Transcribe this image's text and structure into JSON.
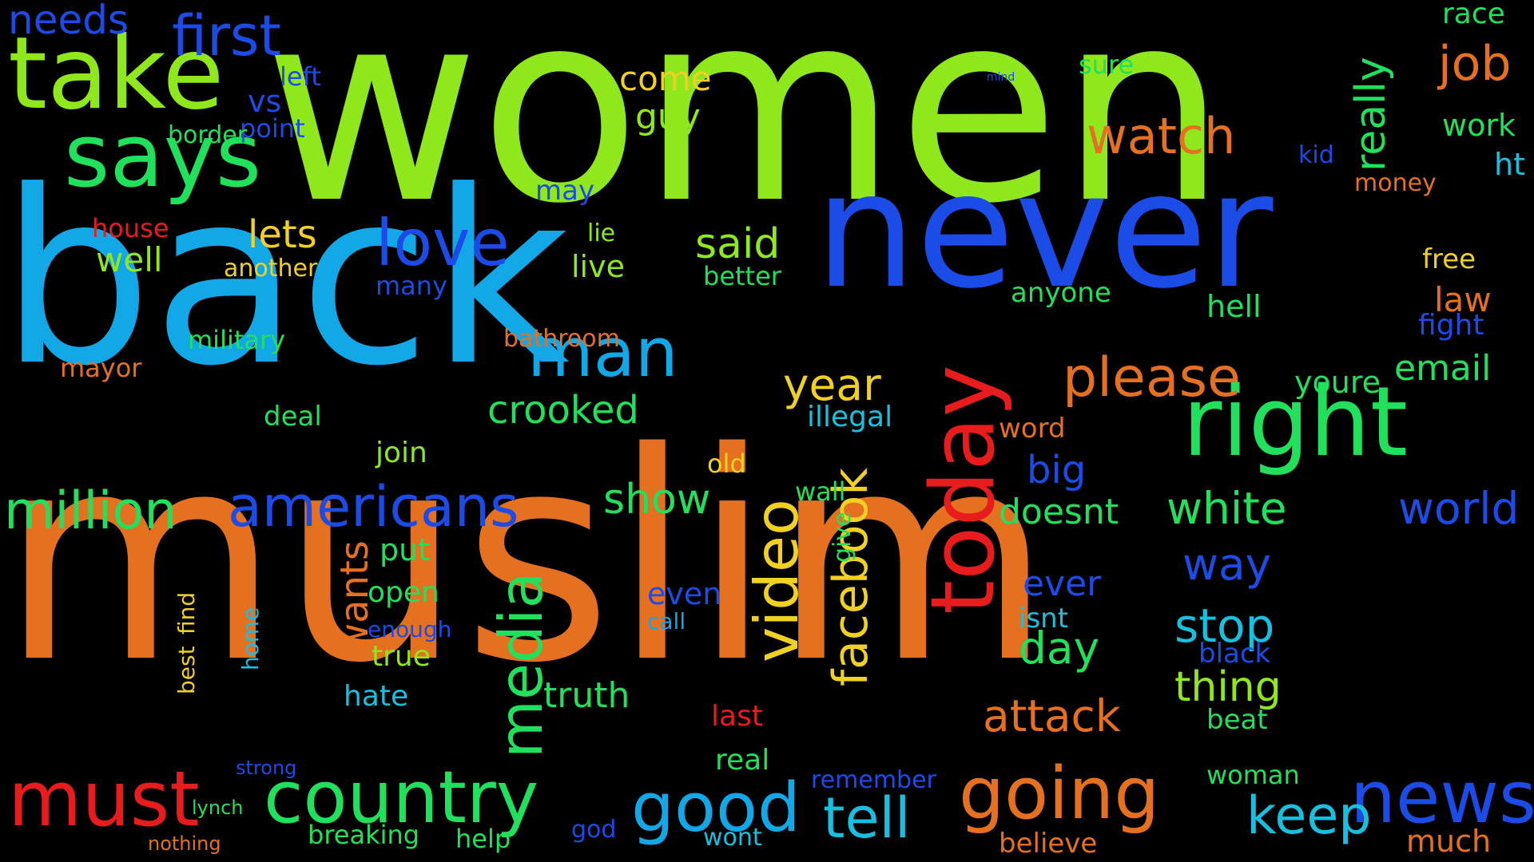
{
  "palette": [
    "#e57020",
    "#8ee81c",
    "#12a8e8",
    "#1c4ce8",
    "#e81c1c",
    "#20e05c",
    "#f0d020",
    "#18c0e0"
  ],
  "words": [
    {
      "t": "women",
      "c": 1,
      "s": 9
    },
    {
      "t": "back",
      "c": 2,
      "s": 9
    },
    {
      "t": "muslim",
      "c": 0,
      "s": 9
    },
    {
      "t": "never",
      "c": 3,
      "s": 8
    },
    {
      "t": "take",
      "c": 1,
      "s": 7
    },
    {
      "t": "says",
      "c": 5,
      "s": 7
    },
    {
      "t": "today",
      "c": 4,
      "s": 7
    },
    {
      "t": "right",
      "c": 5,
      "s": 7
    },
    {
      "t": "must",
      "c": 4,
      "s": 6
    },
    {
      "t": "country",
      "c": 5,
      "s": 6
    },
    {
      "t": "good",
      "c": 2,
      "s": 6
    },
    {
      "t": "going",
      "c": 0,
      "s": 6
    },
    {
      "t": "news",
      "c": 3,
      "s": 6
    },
    {
      "t": "man",
      "c": 2,
      "s": 6
    },
    {
      "t": "love",
      "c": 3,
      "s": 6
    },
    {
      "t": "americans",
      "c": 3,
      "s": 6
    },
    {
      "t": "million",
      "c": 5,
      "s": 5
    },
    {
      "t": "media",
      "c": 5,
      "s": 5
    },
    {
      "t": "video",
      "c": 6,
      "s": 5
    },
    {
      "t": "facebook",
      "c": 6,
      "s": 5
    },
    {
      "t": "please",
      "c": 0,
      "s": 5
    },
    {
      "t": "watch",
      "c": 0,
      "s": 5
    },
    {
      "t": "first",
      "c": 3,
      "s": 5
    },
    {
      "t": "tell",
      "c": 7,
      "s": 5
    },
    {
      "t": "keep",
      "c": 7,
      "s": 5
    },
    {
      "t": "attack",
      "c": 0,
      "s": 5
    },
    {
      "t": "crooked",
      "c": 5,
      "s": 5
    },
    {
      "t": "white",
      "c": 5,
      "s": 5
    },
    {
      "t": "world",
      "c": 3,
      "s": 5
    },
    {
      "t": "year",
      "c": 6,
      "s": 5
    },
    {
      "t": "job",
      "c": 0,
      "s": 5
    },
    {
      "t": "stop",
      "c": 7,
      "s": 5
    },
    {
      "t": "thing",
      "c": 1,
      "s": 5
    },
    {
      "t": "day",
      "c": 5,
      "s": 5
    },
    {
      "t": "way",
      "c": 3,
      "s": 5
    },
    {
      "t": "show",
      "c": 5,
      "s": 5
    },
    {
      "t": "really",
      "c": 5,
      "s": 4
    },
    {
      "t": "said",
      "c": 1,
      "s": 4
    },
    {
      "t": "lets",
      "c": 6,
      "s": 4
    },
    {
      "t": "doesnt",
      "c": 5,
      "s": 4
    },
    {
      "t": "big",
      "c": 3,
      "s": 4
    },
    {
      "t": "truth",
      "c": 5,
      "s": 4
    },
    {
      "t": "email",
      "c": 5,
      "s": 4
    },
    {
      "t": "needs",
      "c": 3,
      "s": 4
    },
    {
      "t": "come",
      "c": 6,
      "s": 4
    },
    {
      "t": "guy",
      "c": 1,
      "s": 4
    },
    {
      "t": "well",
      "c": 1,
      "s": 4
    },
    {
      "t": "wants",
      "c": 0,
      "s": 4
    },
    {
      "t": "live",
      "c": 1,
      "s": 4
    },
    {
      "t": "even",
      "c": 3,
      "s": 4
    },
    {
      "t": "hate",
      "c": 7,
      "s": 4
    },
    {
      "t": "true",
      "c": 1,
      "s": 4
    },
    {
      "t": "open",
      "c": 5,
      "s": 4
    },
    {
      "t": "put",
      "c": 5,
      "s": 4
    },
    {
      "t": "ever",
      "c": 3,
      "s": 4
    },
    {
      "t": "anyone",
      "c": 5,
      "s": 4
    },
    {
      "t": "hell",
      "c": 5,
      "s": 4
    },
    {
      "t": "law",
      "c": 0,
      "s": 4
    },
    {
      "t": "fight",
      "c": 3,
      "s": 4
    },
    {
      "t": "youre",
      "c": 5,
      "s": 4
    },
    {
      "t": "money",
      "c": 0,
      "s": 4
    },
    {
      "t": "work",
      "c": 5,
      "s": 4
    },
    {
      "t": "ht",
      "c": 7,
      "s": 4
    },
    {
      "t": "free",
      "c": 6,
      "s": 4
    },
    {
      "t": "much",
      "c": 0,
      "s": 4
    },
    {
      "t": "beat",
      "c": 5,
      "s": 4
    },
    {
      "t": "last",
      "c": 4,
      "s": 4
    },
    {
      "t": "real",
      "c": 5,
      "s": 4
    },
    {
      "t": "breaking",
      "c": 5,
      "s": 4
    },
    {
      "t": "help",
      "c": 5,
      "s": 4
    },
    {
      "t": "word",
      "c": 0,
      "s": 4
    },
    {
      "t": "old",
      "c": 6,
      "s": 4
    },
    {
      "t": "wall",
      "c": 5,
      "s": 4
    },
    {
      "t": "believe",
      "c": 0,
      "s": 4
    },
    {
      "t": "woman",
      "c": 5,
      "s": 4
    },
    {
      "t": "black",
      "c": 3,
      "s": 4
    },
    {
      "t": "isnt",
      "c": 7,
      "s": 4
    },
    {
      "t": "join",
      "c": 1,
      "s": 4
    },
    {
      "t": "deal",
      "c": 5,
      "s": 4
    },
    {
      "t": "race",
      "c": 5,
      "s": 4
    },
    {
      "t": "vs",
      "c": 3,
      "s": 4
    },
    {
      "t": "kid",
      "c": 3,
      "s": 4
    },
    {
      "t": "military",
      "c": 5,
      "s": 4
    },
    {
      "t": "many",
      "c": 3,
      "s": 4
    },
    {
      "t": "another",
      "c": 6,
      "s": 4
    },
    {
      "t": "house",
      "c": 4,
      "s": 4
    },
    {
      "t": "left",
      "c": 3,
      "s": 4
    },
    {
      "t": "point",
      "c": 3,
      "s": 4
    },
    {
      "t": "border",
      "c": 5,
      "s": 4
    },
    {
      "t": "mayor",
      "c": 0,
      "s": 4
    },
    {
      "t": "bathroom",
      "c": 0,
      "s": 4
    },
    {
      "t": "illegal",
      "c": 7,
      "s": 4
    },
    {
      "t": "better",
      "c": 5,
      "s": 4
    },
    {
      "t": "remember",
      "c": 3,
      "s": 4
    },
    {
      "t": "wont",
      "c": 7,
      "s": 4
    },
    {
      "t": "god",
      "c": 3,
      "s": 4
    },
    {
      "t": "sure",
      "c": 5,
      "s": 3
    },
    {
      "t": "may",
      "c": 3,
      "s": 3
    },
    {
      "t": "lie",
      "c": 1,
      "s": 3
    },
    {
      "t": "give",
      "c": 5,
      "s": 3
    },
    {
      "t": "call",
      "c": 2,
      "s": 3
    },
    {
      "t": "enough",
      "c": 3,
      "s": 3
    },
    {
      "t": "best",
      "c": 6,
      "s": 3
    },
    {
      "t": "find",
      "c": 6,
      "s": 3
    },
    {
      "t": "home",
      "c": 7,
      "s": 3
    },
    {
      "t": "lynch",
      "c": 5,
      "s": 3
    },
    {
      "t": "nothing",
      "c": 0,
      "s": 3
    },
    {
      "t": "strong",
      "c": 3,
      "s": 3
    },
    {
      "t": "mind",
      "c": 3,
      "s": 2
    }
  ]
}
